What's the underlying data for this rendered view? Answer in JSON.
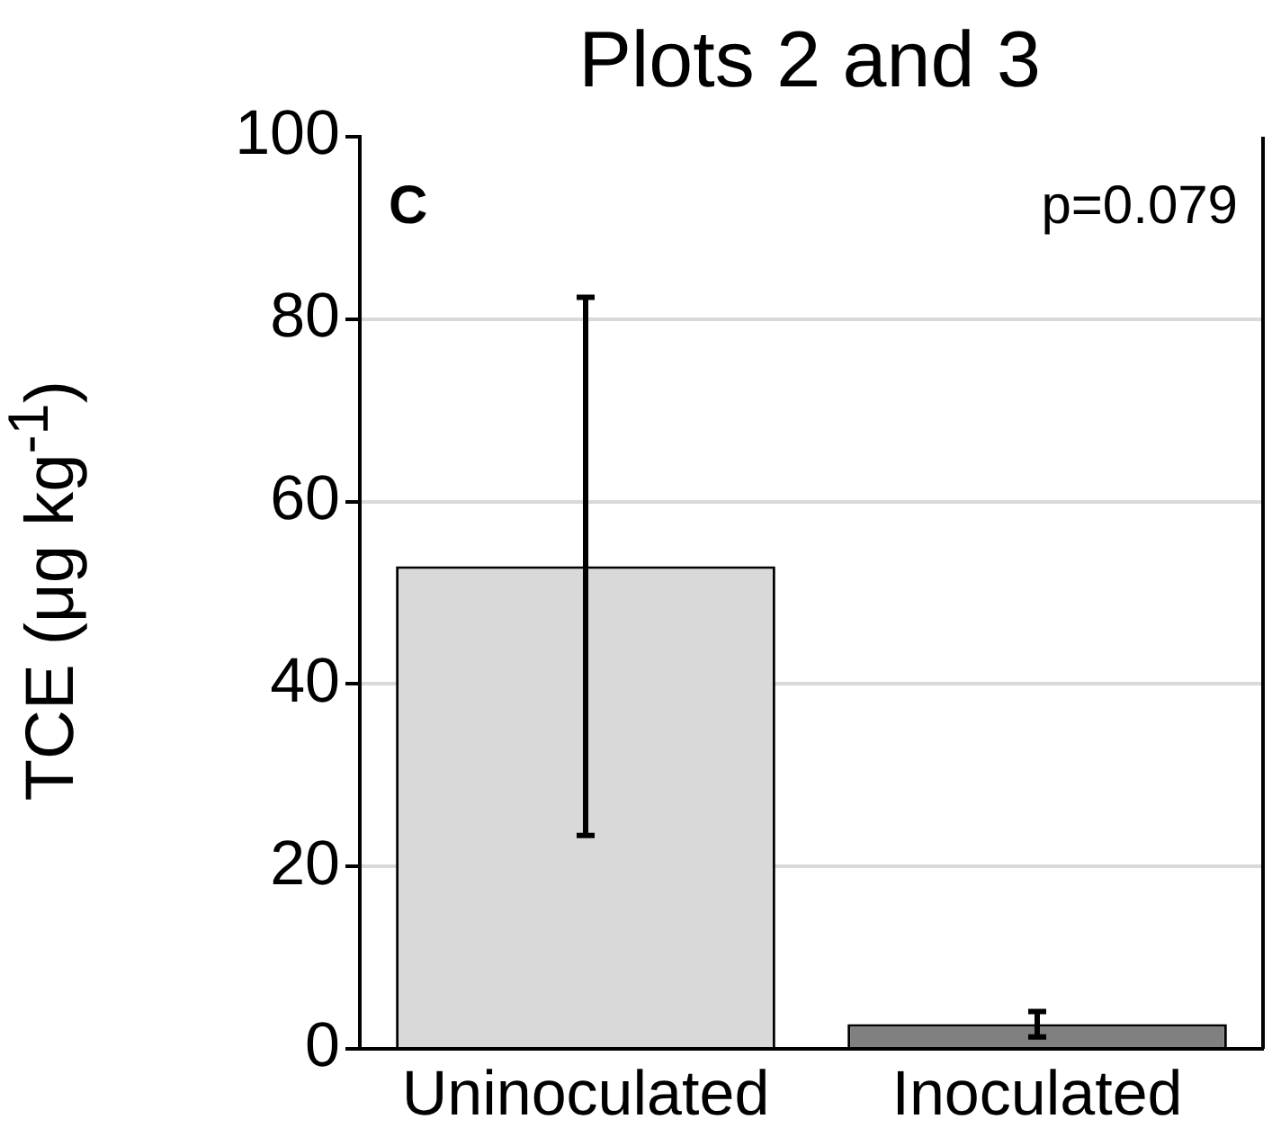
{
  "chart_data": {
    "type": "bar",
    "title": "Plots 2 and 3",
    "ylabel": "TCE (μg kg$^{-1}$)",
    "categories": [
      "Uninoculated",
      "Inoculated"
    ],
    "values": [
      52.9,
      2.7
    ],
    "errors": [
      [
        23.4,
        82.4
      ],
      [
        1.3,
        4.1
      ]
    ],
    "colors": [
      "#d9d9d9",
      "#808080"
    ],
    "ylim": [
      0,
      100
    ],
    "yticks": [
      0,
      20,
      40,
      60,
      80,
      100
    ],
    "grid": "y",
    "legend": false,
    "annotations": [
      "C",
      "p=0.079"
    ]
  }
}
